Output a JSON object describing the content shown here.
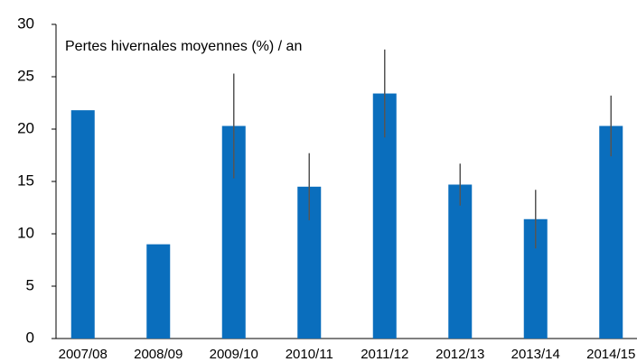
{
  "chart_data": {
    "type": "bar",
    "title": "Pertes hivernales moyennes (%) / an",
    "categories": [
      "2007/08",
      "2008/09",
      "2009/10",
      "2010/11",
      "2011/12",
      "2012/13",
      "2013/14",
      "2014/15"
    ],
    "values": [
      21.8,
      9.0,
      20.3,
      14.5,
      23.4,
      14.7,
      11.4,
      20.3
    ],
    "errors": [
      null,
      null,
      5.0,
      3.2,
      4.2,
      2.0,
      2.8,
      2.9
    ],
    "color": "#0a6ebd",
    "error_color": "#555555",
    "ylim": [
      0,
      30
    ],
    "yticks": [
      0,
      5,
      10,
      15,
      20,
      25,
      30
    ],
    "grid": false
  }
}
